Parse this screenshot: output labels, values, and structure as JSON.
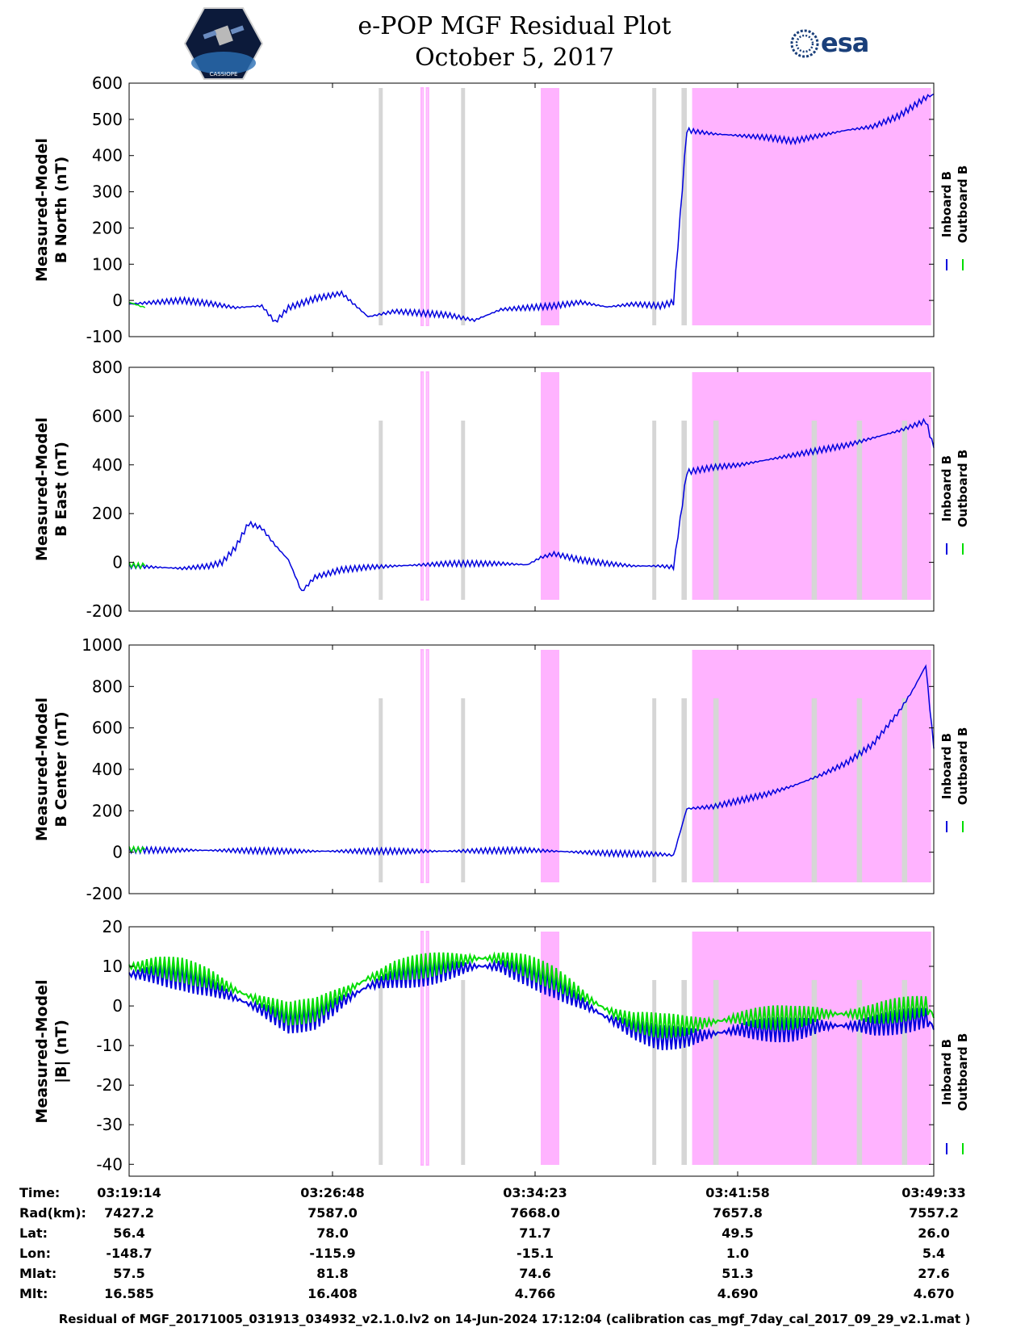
{
  "title_line1": "e-POP MGF Residual Plot",
  "title_line2": "October 5, 2017",
  "logo_left": "CASSIOPE",
  "logo_right": "esa",
  "colors": {
    "inboard": "#0000dd",
    "outboard": "#00dd00",
    "pink_band": "#ffb3ff",
    "gray_band": "#d6d6d6"
  },
  "legend": {
    "inboard": "Inboard B",
    "outboard": "Outboard B"
  },
  "footer": "Residual of MGF_20171005_031913_034932_v2.1.0.lv2 on 14-Jun-2024 17:12:04 (calibration cas_mgf_7day_cal_2017_09_29_v2.1.mat )",
  "ephemeris": {
    "labels": [
      "Time:",
      "Rad(km):",
      "Lat:",
      "Lon:",
      "Mlat:",
      "Mlt:"
    ],
    "columns": [
      [
        "03:19:14",
        "7427.2",
        "56.4",
        "-148.7",
        "57.5",
        "16.585"
      ],
      [
        "03:26:48",
        "7587.0",
        "78.0",
        "-115.9",
        "81.8",
        "16.408"
      ],
      [
        "03:34:23",
        "7668.0",
        "71.7",
        "-15.1",
        "74.6",
        "4.766"
      ],
      [
        "03:41:58",
        "7657.8",
        "49.5",
        "1.0",
        "51.3",
        "4.690"
      ],
      [
        "03:49:33",
        "7557.2",
        "26.0",
        "5.4",
        "27.6",
        "4.670"
      ]
    ]
  },
  "chart_data": [
    {
      "type": "line",
      "title": "",
      "xlabel": "",
      "ylabel": [
        "Measured-Model",
        "B North (nT)"
      ],
      "ylim": [
        -100,
        600
      ],
      "yticks": [
        "600",
        "500",
        "400",
        "300",
        "200",
        "100",
        "0",
        "-100"
      ],
      "xrange_minutes": [
        0,
        30.3
      ],
      "series": [
        {
          "name": "Inboard B",
          "x": [
            0,
            1,
            2,
            3,
            4,
            5,
            5.5,
            6,
            7,
            8,
            9,
            10,
            11,
            12,
            13,
            14,
            15,
            16,
            17,
            18,
            19,
            20,
            20.5,
            21,
            22,
            23,
            24,
            25,
            26,
            27,
            28,
            29,
            30,
            30.3
          ],
          "values": [
            -10,
            -5,
            0,
            -8,
            -20,
            -15,
            -60,
            -20,
            5,
            20,
            -45,
            -30,
            -35,
            -40,
            -55,
            -25,
            -20,
            -15,
            -5,
            -18,
            -10,
            -15,
            -5,
            470,
            460,
            455,
            450,
            440,
            455,
            470,
            480,
            510,
            560,
            570
          ]
        },
        {
          "name": "Outboard B",
          "x": [
            0,
            0.6
          ],
          "values": [
            -5,
            -20
          ]
        }
      ],
      "pink_bands": [
        [
          11,
          11.07
        ],
        [
          11.2,
          11.27
        ],
        [
          15.5,
          16.2
        ],
        [
          21.2,
          30.2
        ]
      ],
      "gray_bands": [
        [
          9.4,
          9.55
        ],
        [
          12.5,
          12.65
        ],
        [
          19.7,
          19.85
        ],
        [
          20.8,
          21.0
        ]
      ]
    },
    {
      "type": "line",
      "title": "",
      "xlabel": "",
      "ylabel": [
        "Measured-Model",
        "B East (nT)"
      ],
      "ylim": [
        -200,
        800
      ],
      "yticks": [
        "800",
        "600",
        "400",
        "200",
        "0",
        "-200"
      ],
      "xrange_minutes": [
        0,
        30.3
      ],
      "series": [
        {
          "name": "Inboard B",
          "x": [
            0,
            1,
            2,
            3,
            3.5,
            4,
            4.5,
            5,
            5.5,
            6,
            6.5,
            7,
            8,
            9,
            10,
            11,
            12,
            13,
            14,
            15,
            15.5,
            16,
            17,
            18,
            19,
            20,
            20.5,
            21,
            22,
            23,
            24,
            25,
            26,
            27,
            28,
            29,
            30,
            30.3
          ],
          "values": [
            -15,
            -20,
            -25,
            -15,
            0,
            60,
            160,
            140,
            70,
            10,
            -120,
            -60,
            -30,
            -20,
            -15,
            -10,
            -5,
            -5,
            -5,
            -10,
            20,
            35,
            10,
            -5,
            -15,
            -15,
            -20,
            370,
            390,
            400,
            420,
            440,
            460,
            480,
            510,
            540,
            580,
            470
          ]
        },
        {
          "name": "Outboard B",
          "x": [
            0,
            0.6
          ],
          "values": [
            -10,
            -15
          ]
        }
      ],
      "pink_bands": [
        [
          11,
          11.07
        ],
        [
          11.2,
          11.27
        ],
        [
          15.5,
          16.2
        ],
        [
          21.2,
          30.2
        ]
      ],
      "gray_bands": [
        [
          9.4,
          9.55
        ],
        [
          12.5,
          12.65
        ],
        [
          19.7,
          19.85
        ],
        [
          20.8,
          21.0
        ],
        [
          22.0,
          22.2
        ],
        [
          25.7,
          25.9
        ],
        [
          27.4,
          27.6
        ],
        [
          29.1,
          29.3
        ]
      ]
    },
    {
      "type": "line",
      "title": "",
      "xlabel": "",
      "ylabel": [
        "Measured-Model",
        "B Center (nT)"
      ],
      "ylim": [
        -200,
        1000
      ],
      "yticks": [
        "1000",
        "800",
        "600",
        "400",
        "200",
        "0",
        "-200"
      ],
      "xrange_minutes": [
        0,
        30.3
      ],
      "series": [
        {
          "name": "Inboard B",
          "x": [
            0,
            2,
            4,
            6,
            8,
            10,
            12,
            14,
            15,
            16,
            18,
            20,
            20.5,
            21,
            22,
            23,
            24,
            25,
            26,
            27,
            28,
            29,
            29.5,
            30,
            30.3
          ],
          "values": [
            10,
            10,
            8,
            5,
            5,
            5,
            5,
            8,
            10,
            5,
            -5,
            -10,
            -15,
            210,
            220,
            250,
            280,
            320,
            370,
            430,
            520,
            680,
            780,
            900,
            500
          ]
        },
        {
          "name": "Outboard B",
          "x": [
            0,
            0.6
          ],
          "values": [
            15,
            12
          ]
        }
      ],
      "pink_bands": [
        [
          11,
          11.07
        ],
        [
          11.2,
          11.27
        ],
        [
          15.5,
          16.2
        ],
        [
          21.2,
          30.2
        ]
      ],
      "gray_bands": [
        [
          9.4,
          9.55
        ],
        [
          12.5,
          12.65
        ],
        [
          19.7,
          19.85
        ],
        [
          20.8,
          21.0
        ],
        [
          22.0,
          22.2
        ],
        [
          25.7,
          25.9
        ],
        [
          27.4,
          27.6
        ],
        [
          29.1,
          29.3
        ]
      ]
    },
    {
      "type": "line",
      "title": "",
      "xlabel": "",
      "ylabel": [
        "Measured-Model",
        "|B| (nT)"
      ],
      "ylim": [
        -43,
        20
      ],
      "yticks": [
        "20",
        "10",
        "0",
        "-10",
        "-20",
        "-30",
        "-40"
      ],
      "xrange_minutes": [
        0,
        30.3
      ],
      "series": [
        {
          "name": "Inboard B",
          "x": [
            0,
            1,
            2,
            3,
            4,
            5,
            6,
            7,
            8,
            9,
            10,
            11,
            12,
            13,
            14,
            15,
            16,
            17,
            18,
            19,
            20,
            21,
            22,
            23,
            24,
            25,
            26,
            27,
            28,
            29,
            30,
            30.3
          ],
          "values": [
            8,
            8,
            7,
            5,
            2,
            -1,
            -4,
            -3,
            1,
            5,
            7,
            8,
            9,
            10,
            10,
            8,
            5,
            1,
            -3,
            -6,
            -8,
            -8,
            -7,
            -6,
            -6,
            -6,
            -5,
            -5,
            -5,
            -4,
            -3,
            -6
          ]
        },
        {
          "name": "Outboard B",
          "x": [
            0,
            1,
            2,
            3,
            4,
            5,
            6,
            7,
            8,
            9,
            10,
            11,
            12,
            13,
            14,
            15,
            16,
            17,
            18,
            19,
            20,
            21,
            22,
            23,
            24,
            25,
            26,
            27,
            28,
            29,
            30,
            30.3
          ],
          "values": [
            10,
            10,
            9,
            7,
            4,
            1,
            -2,
            -1,
            3,
            7,
            9,
            10,
            11,
            12,
            12,
            10,
            7,
            3,
            -1,
            -4,
            -5,
            -5,
            -4,
            -3,
            -3,
            -3,
            -2,
            -2,
            -2,
            -1,
            0,
            -3
          ]
        }
      ],
      "pink_bands": [
        [
          11,
          11.07
        ],
        [
          11.2,
          11.27
        ],
        [
          15.5,
          16.2
        ],
        [
          21.2,
          30.2
        ]
      ],
      "gray_bands": [
        [
          9.4,
          9.55
        ],
        [
          12.5,
          12.65
        ],
        [
          19.7,
          19.85
        ],
        [
          20.8,
          21.0
        ],
        [
          22.0,
          22.2
        ],
        [
          25.7,
          25.9
        ],
        [
          27.4,
          27.6
        ],
        [
          29.1,
          29.3
        ]
      ]
    }
  ]
}
